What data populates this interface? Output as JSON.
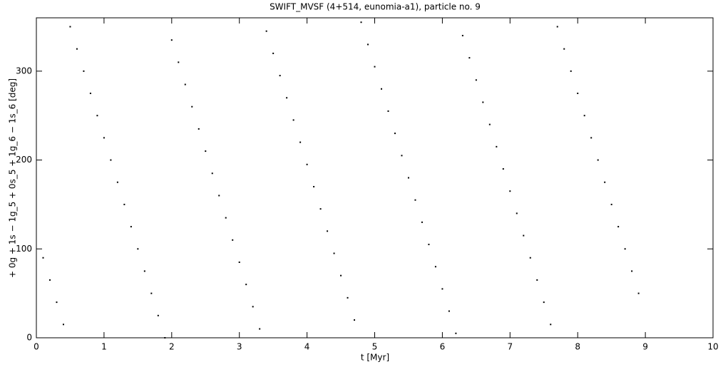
{
  "chart_data": {
    "type": "scatter",
    "title": "SWIFT_MVSF (4+514, eunomia-a1), particle no. 9",
    "x_label": "t [Myr]",
    "y_label": "+ 0g + 1s − 1g_5 + 0s_5 + 1g_6 − 1s_6 [deg]",
    "color": "#000000",
    "xlim": [
      0,
      10
    ],
    "xticks": [
      0,
      1,
      2,
      3,
      4,
      5,
      6,
      7,
      8,
      9,
      10
    ],
    "ylim": [
      0,
      360
    ],
    "yticks": [
      0,
      100,
      200,
      300
    ],
    "series": [
      {
        "name": "particle no. 9",
        "color": "#000000",
        "x": [
          0.1,
          0.2,
          0.3,
          0.4,
          0.5,
          0.6,
          0.7,
          0.8,
          0.9,
          1.0,
          1.1,
          1.2,
          1.3,
          1.4,
          1.5,
          1.6,
          1.7,
          1.8,
          1.9,
          2.0,
          2.1,
          2.2,
          2.3,
          2.4,
          2.5,
          2.6,
          2.7,
          2.8,
          2.9,
          3.0,
          3.1,
          3.2,
          3.3,
          3.4,
          3.5,
          3.6,
          3.7,
          3.8,
          3.9,
          4.0,
          4.1,
          4.2,
          4.3,
          4.4,
          4.5,
          4.6,
          4.7,
          4.8,
          4.9,
          5.0,
          5.1,
          5.2,
          5.3,
          5.4,
          5.5,
          5.6,
          5.7,
          5.8,
          5.9,
          6.0,
          6.1,
          6.2,
          6.3,
          6.4,
          6.5,
          6.6,
          6.7,
          6.8,
          6.9,
          7.0,
          7.1,
          7.2,
          7.3,
          7.4,
          7.5,
          7.6,
          7.7,
          7.8,
          7.9,
          8.0,
          8.1,
          8.2,
          8.3,
          8.4,
          8.5,
          8.6,
          8.7,
          8.8,
          8.9
        ],
        "values": [
          90,
          65,
          40,
          15,
          350,
          325,
          300,
          275,
          250,
          225,
          200,
          175,
          150,
          125,
          100,
          75,
          50,
          25,
          0,
          335,
          310,
          285,
          260,
          235,
          210,
          185,
          160,
          135,
          110,
          85,
          60,
          35,
          10,
          345,
          320,
          295,
          270,
          245,
          220,
          195,
          170,
          145,
          120,
          95,
          70,
          45,
          20,
          355,
          330,
          305,
          280,
          255,
          230,
          205,
          180,
          155,
          130,
          105,
          80,
          55,
          30,
          5,
          340,
          315,
          290,
          265,
          240,
          215,
          190,
          165,
          140,
          115,
          90,
          65,
          40,
          15,
          350,
          325,
          300,
          275,
          250,
          225,
          200,
          175,
          150,
          125,
          100,
          75,
          50
        ]
      }
    ]
  }
}
